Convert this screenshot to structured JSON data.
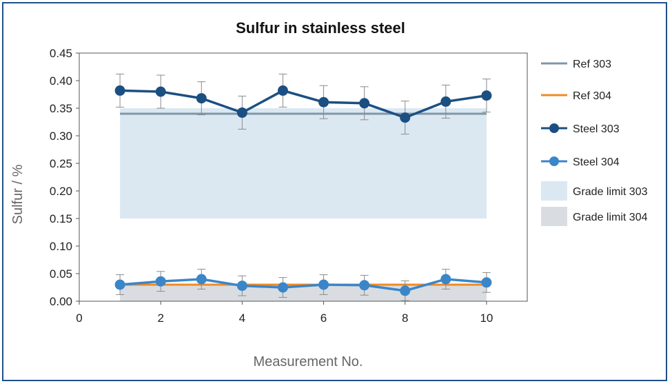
{
  "chart_data": {
    "type": "line",
    "title": "Sulfur in stainless steel",
    "xlabel": "Measurement No.",
    "ylabel": "Sulfur / %",
    "xlim": [
      0,
      11
    ],
    "ylim": [
      0,
      0.45
    ],
    "x_ticks": [
      0,
      2,
      4,
      6,
      8,
      10
    ],
    "x_tick_labels": [
      "0",
      "2",
      "4",
      "6",
      "8",
      "10"
    ],
    "y_ticks": [
      0,
      0.05,
      0.1,
      0.15,
      0.2,
      0.25,
      0.3,
      0.35,
      0.4,
      0.45
    ],
    "y_tick_labels": [
      "0.00",
      "0.05",
      "0.10",
      "0.15",
      "0.20",
      "0.25",
      "0.30",
      "0.35",
      "0.40",
      "0.45"
    ],
    "grid": false,
    "legend_position": "right",
    "bands": [
      {
        "name": "Grade limit 303",
        "x_range": [
          1,
          10
        ],
        "y_range": [
          0.15,
          0.35
        ],
        "color": "#dbe8f2"
      },
      {
        "name": "Grade limit 304",
        "x_range": [
          1,
          10
        ],
        "y_range": [
          0.0,
          0.03
        ],
        "color": "#d9dde1"
      }
    ],
    "series": [
      {
        "name": "Ref 303",
        "kind": "line",
        "color": "#7f97a8",
        "x": [
          1,
          10
        ],
        "values": [
          0.34,
          0.34
        ]
      },
      {
        "name": "Ref 304",
        "kind": "line",
        "color": "#f08a24",
        "x": [
          1,
          10
        ],
        "values": [
          0.03,
          0.03
        ]
      },
      {
        "name": "Steel 303",
        "kind": "line-markers",
        "color": "#1b4f82",
        "x": [
          1,
          2,
          3,
          4,
          5,
          6,
          7,
          8,
          9,
          10
        ],
        "values": [
          0.382,
          0.38,
          0.368,
          0.342,
          0.382,
          0.361,
          0.359,
          0.333,
          0.362,
          0.373
        ],
        "error": 0.03
      },
      {
        "name": "Steel 304",
        "kind": "line-markers",
        "color": "#3a86c8",
        "x": [
          1,
          2,
          3,
          4,
          5,
          6,
          7,
          8,
          9,
          10
        ],
        "values": [
          0.03,
          0.036,
          0.04,
          0.028,
          0.025,
          0.03,
          0.029,
          0.019,
          0.04,
          0.034
        ],
        "error": 0.018
      }
    ]
  }
}
